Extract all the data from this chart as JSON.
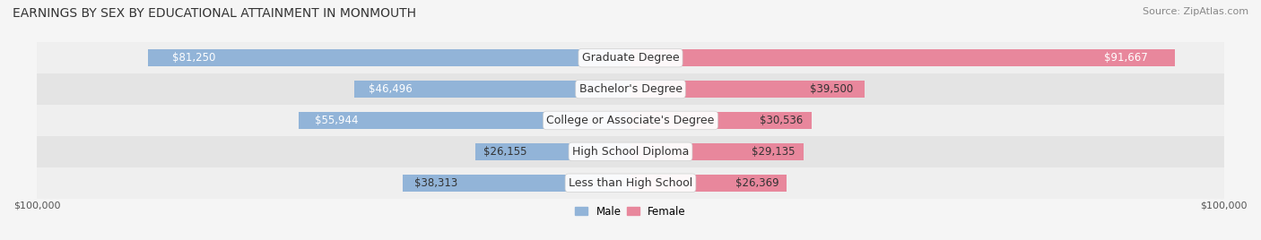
{
  "title": "EARNINGS BY SEX BY EDUCATIONAL ATTAINMENT IN MONMOUTH",
  "source": "Source: ZipAtlas.com",
  "categories": [
    "Less than High School",
    "High School Diploma",
    "College or Associate's Degree",
    "Bachelor's Degree",
    "Graduate Degree"
  ],
  "male_values": [
    38313,
    26155,
    55944,
    46496,
    81250
  ],
  "female_values": [
    26369,
    29135,
    30536,
    39500,
    91667
  ],
  "max_value": 100000,
  "male_color": "#92b4d8",
  "female_color": "#e8879c",
  "male_label": "Male",
  "female_label": "Female",
  "bar_bg_color": "#e8e8e8",
  "row_bg_colors": [
    "#f0f0f0",
    "#e8e8e8"
  ],
  "label_color_inside": "#ffffff",
  "label_color_outside": "#555555",
  "x_tick_labels": [
    "$100,000",
    "$100,000"
  ],
  "title_fontsize": 10,
  "source_fontsize": 8,
  "bar_height": 0.55,
  "category_fontsize": 9,
  "value_fontsize": 8.5
}
